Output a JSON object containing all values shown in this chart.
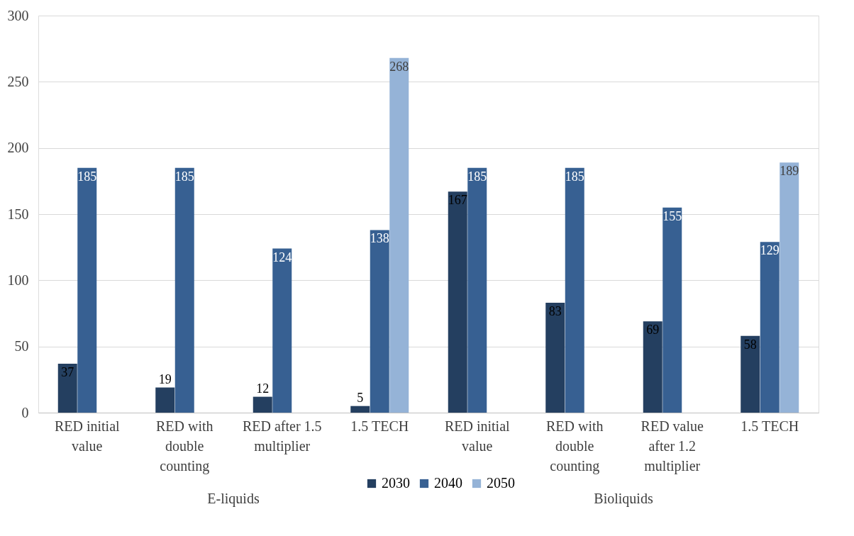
{
  "chart_data": {
    "type": "bar",
    "categories": [
      "RED initial value",
      "RED with double counting",
      "RED after 1.5 multiplier",
      "1.5 TECH",
      "RED initial value",
      "RED with double counting",
      "RED value after 1.2 multiplier",
      "1.5 TECH"
    ],
    "series": [
      {
        "name": "2030",
        "color": "#243f60",
        "values": [
          37,
          19,
          12,
          5,
          167,
          83,
          69,
          58
        ]
      },
      {
        "name": "2040",
        "color": "#376092",
        "values": [
          185,
          185,
          124,
          138,
          185,
          185,
          155,
          129
        ]
      },
      {
        "name": "2050",
        "color": "#95b3d7",
        "values": [
          null,
          null,
          null,
          268,
          null,
          null,
          null,
          189
        ]
      }
    ],
    "ylim": [
      0,
      300
    ],
    "yticks": [
      0,
      50,
      100,
      150,
      200,
      250,
      300
    ],
    "grid": "y",
    "legend": "bottom",
    "data_labels": true,
    "annotations": [
      "E-liquids",
      "Bioliquids"
    ]
  }
}
